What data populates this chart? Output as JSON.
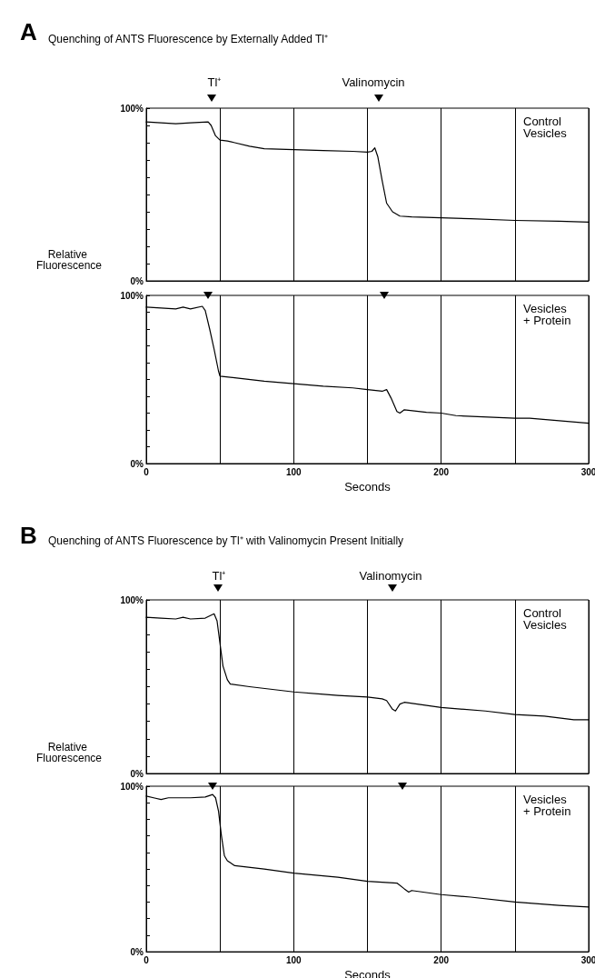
{
  "chart_data": [
    {
      "type": "line",
      "title": "Quenching of ANTS Fluorescence by Externally Added Tl⁺",
      "ylabel": "Relative Fluorescence",
      "annotations": [
        "A",
        "Tl⁺",
        "Valinomycin"
      ],
      "series": [
        {
          "name": "Control Vesicles",
          "color": "#000000",
          "x": [
            0,
            10,
            20,
            30,
            42,
            44,
            47,
            50,
            55,
            60,
            70,
            80,
            100,
            120,
            140,
            150,
            153,
            155,
            157,
            160,
            163,
            167,
            172,
            180,
            200,
            220,
            250,
            280,
            300
          ],
          "values": [
            92,
            91.5,
            91,
            91.5,
            92,
            90,
            84,
            81.5,
            81,
            80,
            78,
            76.5,
            76,
            75.5,
            75,
            74.5,
            75,
            77,
            72,
            58,
            45,
            40,
            37.5,
            37,
            36.5,
            36,
            35,
            34.5,
            34
          ]
        }
      ],
      "xlim": [
        0,
        300
      ],
      "xticks": [
        0,
        {
          "value": 50,
          "label": null
        },
        100,
        {
          "value": 150,
          "label": null
        },
        200,
        {
          "value": 250,
          "label": null
        },
        300
      ],
      "ylim": [
        0,
        100
      ],
      "yticks": [
        {
          "value": 0,
          "label": "0%"
        },
        {
          "value": 10,
          "label": null
        },
        {
          "value": 20,
          "label": null
        },
        {
          "value": 30,
          "label": null
        },
        {
          "value": 40,
          "label": null
        },
        {
          "value": 50,
          "label": null
        },
        {
          "value": 60,
          "label": null
        },
        {
          "value": 70,
          "label": null
        },
        {
          "value": 80,
          "label": null
        },
        {
          "value": 90,
          "label": null
        },
        {
          "value": 100,
          "label": "100%"
        }
      ],
      "tick_labels": "y",
      "grid": "x",
      "marker": "none",
      "line_style": "solid"
    },
    {
      "type": "line",
      "xlabel": "Seconds",
      "series": [
        {
          "name": "Vesicles + Protein",
          "color": "#000000",
          "x": [
            0,
            10,
            20,
            25,
            30,
            38,
            40,
            43,
            46,
            49,
            50,
            60,
            80,
            100,
            120,
            140,
            150,
            160,
            163,
            166,
            170,
            172,
            175,
            190,
            200,
            210,
            250,
            260,
            300
          ],
          "values": [
            93,
            92.5,
            92,
            93,
            92,
            93.5,
            91,
            80,
            68,
            55,
            52,
            51,
            49,
            47.5,
            46,
            45,
            44,
            43,
            44,
            39,
            31,
            30,
            32,
            30.5,
            30,
            28.5,
            27,
            27,
            24
          ]
        }
      ],
      "xlim": [
        0,
        300
      ],
      "xticks": [
        0,
        {
          "value": 50,
          "label": null
        },
        100,
        {
          "value": 150,
          "label": null
        },
        200,
        {
          "value": 250,
          "label": null
        },
        300
      ],
      "ylim": [
        0,
        100
      ],
      "yticks": [
        {
          "value": 0,
          "label": "0%"
        },
        {
          "value": 10,
          "label": null
        },
        {
          "value": 20,
          "label": null
        },
        {
          "value": 30,
          "label": null
        },
        {
          "value": 40,
          "label": null
        },
        {
          "value": 50,
          "label": null
        },
        {
          "value": 60,
          "label": null
        },
        {
          "value": 70,
          "label": null
        },
        {
          "value": 80,
          "label": null
        },
        {
          "value": 90,
          "label": null
        },
        {
          "value": 100,
          "label": "100%"
        }
      ],
      "grid": "x",
      "marker": "none",
      "line_style": "solid"
    },
    {
      "type": "line",
      "title": "Quenching of ANTS Fluorescence by Tl⁺ with Valinomycin Present Initially",
      "ylabel": "Relative Fluorescence",
      "annotations": [
        "B",
        "Tl⁺",
        "Valinomycin"
      ],
      "series": [
        {
          "name": "Control Vesicles",
          "color": "#000000",
          "x": [
            0,
            10,
            20,
            25,
            30,
            40,
            46,
            48,
            50,
            52,
            55,
            57,
            70,
            100,
            130,
            150,
            160,
            163,
            167,
            169,
            172,
            175,
            200,
            230,
            250,
            270,
            290,
            300
          ],
          "values": [
            90,
            89.5,
            89,
            90,
            89,
            89.5,
            92,
            88,
            75,
            62,
            54,
            51.5,
            50,
            47,
            45,
            44,
            43,
            42,
            37,
            36,
            40,
            41,
            38,
            36,
            34,
            33,
            31,
            31
          ]
        }
      ],
      "xlim": [
        0,
        300
      ],
      "xticks": [
        0,
        {
          "value": 50,
          "label": null
        },
        100,
        {
          "value": 150,
          "label": null
        },
        200,
        {
          "value": 250,
          "label": null
        },
        300
      ],
      "ylim": [
        0,
        100
      ],
      "yticks": [
        {
          "value": 0,
          "label": "0%"
        },
        {
          "value": 10,
          "label": null
        },
        {
          "value": 20,
          "label": null
        },
        {
          "value": 30,
          "label": null
        },
        {
          "value": 40,
          "label": null
        },
        {
          "value": 50,
          "label": null
        },
        {
          "value": 60,
          "label": null
        },
        {
          "value": 70,
          "label": null
        },
        {
          "value": 80,
          "label": null
        },
        {
          "value": 90,
          "label": null
        },
        {
          "value": 100,
          "label": "100%"
        }
      ],
      "tick_labels": "y",
      "grid": "x",
      "marker": "none",
      "line_style": "solid"
    },
    {
      "type": "line",
      "xlabel": "Seconds",
      "series": [
        {
          "name": "Vesicles + Protein",
          "color": "#000000",
          "x": [
            0,
            5,
            10,
            15,
            30,
            40,
            45,
            47,
            49,
            51,
            53,
            55,
            60,
            80,
            100,
            130,
            150,
            170,
            175,
            178,
            180,
            200,
            220,
            250,
            280,
            300
          ],
          "values": [
            94,
            93,
            92,
            93,
            93,
            93.5,
            95,
            93,
            85,
            70,
            58,
            55,
            52,
            50,
            47.5,
            45,
            42.5,
            41.5,
            38,
            36,
            37,
            34.5,
            33,
            30,
            28,
            27
          ]
        }
      ],
      "xlim": [
        0,
        300
      ],
      "xticks": [
        0,
        {
          "value": 50,
          "label": null
        },
        100,
        {
          "value": 150,
          "label": null
        },
        200,
        {
          "value": 250,
          "label": null
        },
        300
      ],
      "ylim": [
        0,
        100
      ],
      "yticks": [
        {
          "value": 0,
          "label": "0%"
        },
        {
          "value": 10,
          "label": null
        },
        {
          "value": 20,
          "label": null
        },
        {
          "value": 30,
          "label": null
        },
        {
          "value": 40,
          "label": null
        },
        {
          "value": 50,
          "label": null
        },
        {
          "value": 60,
          "label": null
        },
        {
          "value": 70,
          "label": null
        },
        {
          "value": 80,
          "label": null
        },
        {
          "value": 90,
          "label": null
        },
        {
          "value": 100,
          "label": "100%"
        }
      ],
      "grid": "x",
      "marker": "none",
      "line_style": "solid"
    }
  ]
}
